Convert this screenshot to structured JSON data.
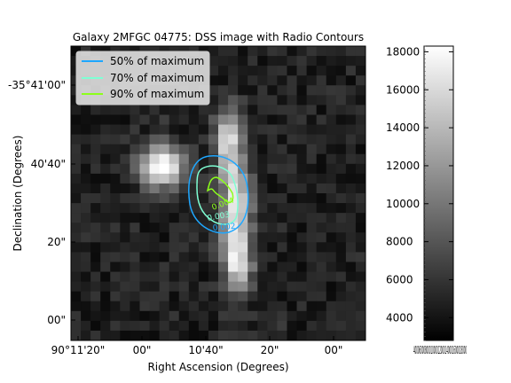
{
  "title": "Galaxy 2MFGC 04775: DSS image with Radio Contours",
  "xlabel": "Right Ascension (Degrees)",
  "ylabel": "Declination (Degrees)",
  "x_ticks": [
    "90°11'20\"",
    "00\"",
    "10'40\"",
    "20\"",
    "00\""
  ],
  "y_ticks": [
    "-35°41'00\"",
    "40'40\"",
    "20\"",
    "00\""
  ],
  "legend": [
    {
      "label": "50% of maximum",
      "color": "#1ea7ff"
    },
    {
      "label": "70% of maximum",
      "color": "#7fffd4"
    },
    {
      "label": "90% of maximum",
      "color": "#8cff1a"
    }
  ],
  "contour_labels": [
    {
      "text": "0.002",
      "color": "#1ea7ff"
    },
    {
      "text": "0.003",
      "color": "#7fffd4"
    },
    {
      "text": "0.004",
      "color": "#8cff1a"
    }
  ],
  "colorbar": {
    "ticks": [
      "4000",
      "6000",
      "8000",
      "10000",
      "12000",
      "14000",
      "16000",
      "18000"
    ],
    "min": 2800,
    "max": 18300,
    "overlap_label": "4000600080001000012000140001600018000"
  }
}
